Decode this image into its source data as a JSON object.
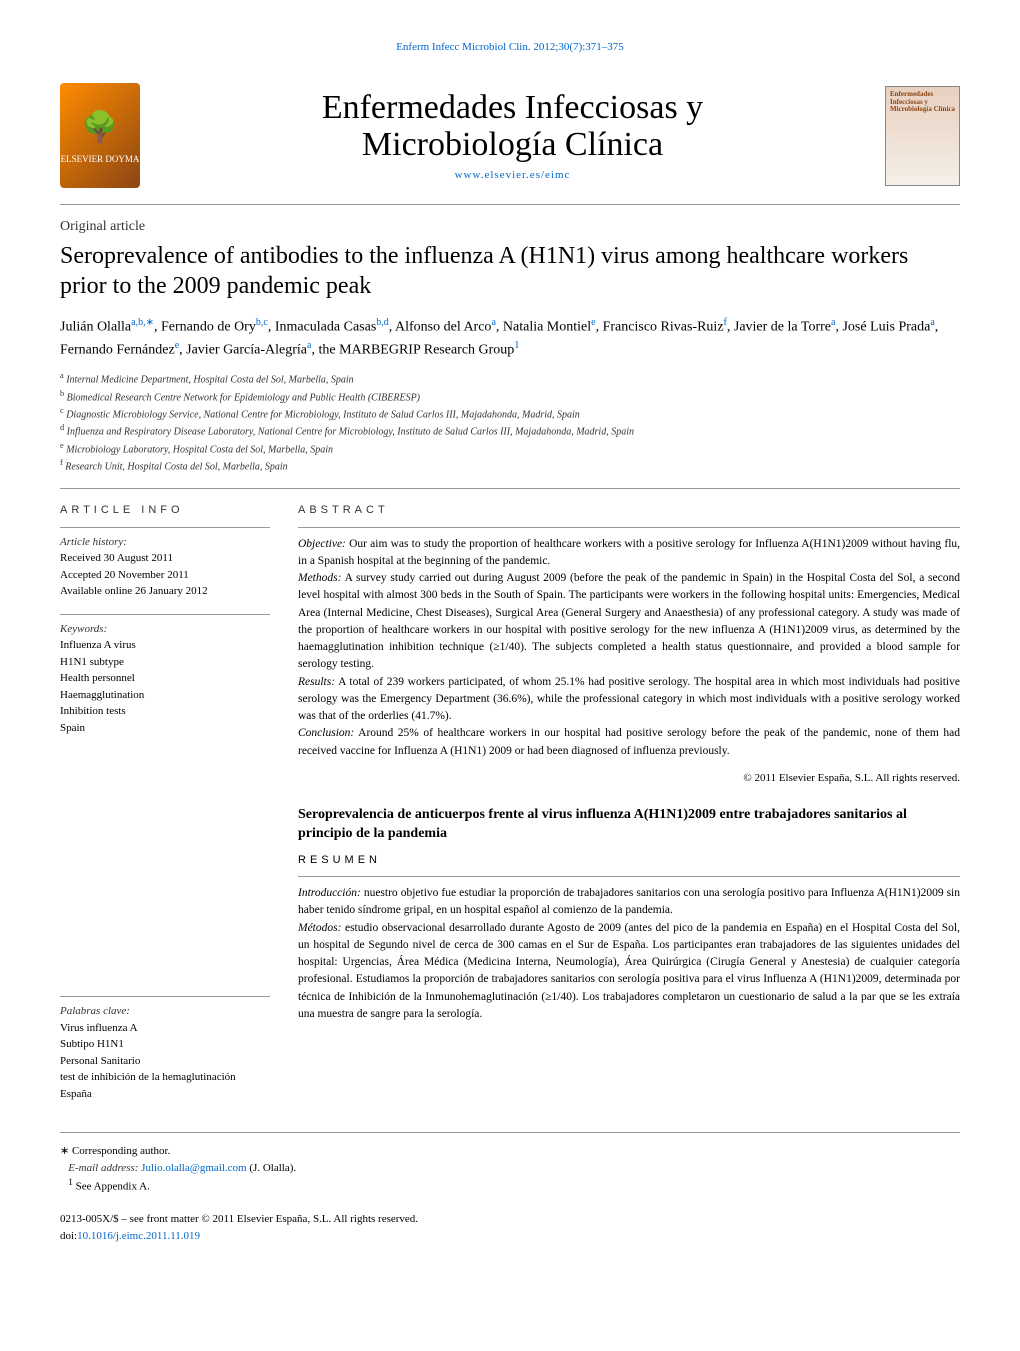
{
  "header_link": "Enferm Infecc Microbiol Clin. 2012;30(7):371–375",
  "publisher_logo_text": "ELSEVIER DOYMA",
  "journal_title_line1": "Enfermedades Infecciosas y",
  "journal_title_line2": "Microbiología Clínica",
  "journal_url": "www.elsevier.es/eimc",
  "cover_title": "Enfermedades Infecciosas y Microbiología Clínica",
  "article_type": "Original article",
  "article_title": "Seroprevalence of antibodies to the influenza A (H1N1) virus among healthcare workers prior to the 2009 pandemic peak",
  "authors_html": "Julián Olalla<sup>a,b,∗</sup>, Fernando de Ory<sup>b,c</sup>, Inmaculada Casas<sup>b,d</sup>, Alfonso del Arco<sup>a</sup>, Natalia Montiel<sup>e</sup>, Francisco Rivas-Ruiz<sup>f</sup>, Javier de la Torre<sup>a</sup>, José Luis Prada<sup>a</sup>, Fernando Fernández<sup>e</sup>, Javier García-Alegría<sup>a</sup>, the MARBEGRIP Research Group<sup>1</sup>",
  "affiliations": {
    "a": "Internal Medicine Department, Hospital Costa del Sol, Marbella, Spain",
    "b": "Biomedical Research Centre Network for Epidemiology and Public Health (CIBERESP)",
    "c": "Diagnostic Microbiology Service, National Centre for Microbiology, Instituto de Salud Carlos III, Majadahonda, Madrid, Spain",
    "d": "Influenza and Respiratory Disease Laboratory, National Centre for Microbiology, Instituto de Salud Carlos III, Majadahonda, Madrid, Spain",
    "e": "Microbiology Laboratory, Hospital Costa del Sol, Marbella, Spain",
    "f": "Research Unit, Hospital Costa del Sol, Marbella, Spain"
  },
  "article_info_heading": "ARTICLE INFO",
  "article_history_label": "Article history:",
  "article_history": {
    "received": "Received 30 August 2011",
    "accepted": "Accepted 20 November 2011",
    "online": "Available online 26 January 2012"
  },
  "keywords_label": "Keywords:",
  "keywords": [
    "Influenza A virus",
    "H1N1 subtype",
    "Health personnel",
    "Haemagglutination",
    "Inhibition tests",
    "Spain"
  ],
  "abstract_heading": "ABSTRACT",
  "abstract": {
    "objective_label": "Objective:",
    "objective": "Our aim was to study the proportion of healthcare workers with a positive serology for Influenza A(H1N1)2009 without having flu, in a Spanish hospital at the beginning of the pandemic.",
    "methods_label": "Methods:",
    "methods": "A survey study carried out during August 2009 (before the peak of the pandemic in Spain) in the Hospital Costa del Sol, a second level hospital with almost 300 beds in the South of Spain. The participants were workers in the following hospital units: Emergencies, Medical Area (Internal Medicine, Chest Diseases), Surgical Area (General Surgery and Anaesthesia) of any professional category. A study was made of the proportion of healthcare workers in our hospital with positive serology for the new influenza A (H1N1)2009 virus, as determined by the haemagglutination inhibition technique (≥1/40). The subjects completed a health status questionnaire, and provided a blood sample for serology testing.",
    "results_label": "Results:",
    "results": "A total of 239 workers participated, of whom 25.1% had positive serology. The hospital area in which most individuals had positive serology was the Emergency Department (36.6%), while the professional category in which most individuals with a positive serology worked was that of the orderlies (41.7%).",
    "conclusion_label": "Conclusion:",
    "conclusion": "Around 25% of healthcare workers in our hospital had positive serology before the peak of the pandemic, none of them had received vaccine for Influenza A (H1N1) 2009 or had been diagnosed of influenza previously."
  },
  "copyright_en": "© 2011 Elsevier España, S.L. All rights reserved.",
  "spanish_title": "Seroprevalencia de anticuerpos frente al virus influenza A(H1N1)2009 entre trabajadores sanitarios al principio de la pandemia",
  "resumen_heading": "RESUMEN",
  "palabras_label": "Palabras clave:",
  "palabras": [
    "Virus influenza A",
    "Subtipo H1N1",
    "Personal Sanitario",
    "test de inhibición de la hemaglutinación",
    "España"
  ],
  "resumen": {
    "introduccion_label": "Introducción:",
    "introduccion": "nuestro objetivo fue estudiar la proporción de trabajadores sanitarios con una serología positivo para Influenza A(H1N1)2009 sin haber tenido síndrome gripal, en un hospital español al comienzo de la pandemia.",
    "metodos_label": "Métodos:",
    "metodos": "estudio observacional desarrollado durante Agosto de 2009 (antes del pico de la pandemia en España) en el Hospital Costa del Sol, un hospital de Segundo nivel de cerca de 300 camas en el Sur de España. Los participantes eran trabajadores de las siguientes unidades del hospital: Urgencias, Área Médica (Medicina Interna, Neumología), Área Quirúrgica (Cirugía General y Anestesia) de cualquier categoría profesional. Estudiamos la proporción de trabajadores sanitarios con serología positiva para el virus Influenza A (H1N1)2009, determinada por técnica de Inhibición de la Inmunohemaglutinación (≥1/40). Los trabajadores completaron un cuestionario de salud a la par que se les extraía una muestra de sangre para la serología."
  },
  "corresponding_author_label": "∗ Corresponding author.",
  "email_label": "E-mail address:",
  "email": "Julio.olalla@gmail.com",
  "email_name": "(J. Olalla).",
  "appendix_note": "See Appendix A.",
  "appendix_sup": "1",
  "front_matter": "0213-005X/$ – see front matter © 2011 Elsevier España, S.L. All rights reserved.",
  "doi_label": "doi:",
  "doi": "10.1016/j.eimc.2011.11.019"
}
